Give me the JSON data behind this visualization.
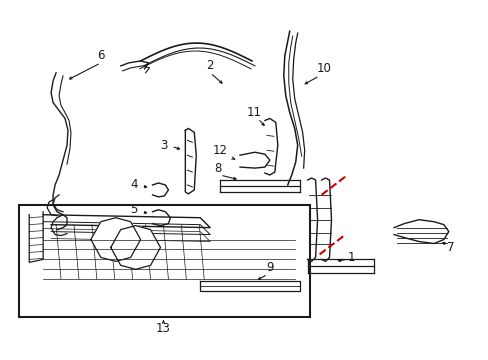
{
  "background_color": "#ffffff",
  "figure_width": 4.89,
  "figure_height": 3.6,
  "dpi": 100,
  "line_color": "#1a1a1a",
  "red_color": "#cc0000",
  "label_fontsize": 8.5
}
